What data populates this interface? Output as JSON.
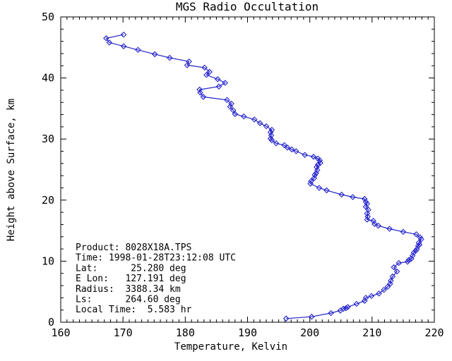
{
  "title": "MGS Radio Occultation",
  "chart_data": {
    "type": "line",
    "title": "MGS Radio Occultation",
    "xlabel": "Temperature, Kelvin",
    "ylabel": "Height above Surface, km",
    "xlim": [
      160,
      220
    ],
    "ylim": [
      0,
      50
    ],
    "x_major_ticks": [
      160,
      170,
      180,
      190,
      200,
      210,
      220
    ],
    "y_major_ticks": [
      0,
      10,
      20,
      30,
      40,
      50
    ],
    "x_minor_step": 1,
    "y_minor_step": 2,
    "grid": false,
    "legend": "none",
    "marker": "open-diamond",
    "line_color": "#2222CC",
    "frame_color": "#000000",
    "background_color": "#FFFFFF",
    "series": [
      {
        "name": "temperature_profile",
        "x_units": "Kelvin",
        "y_units": "km",
        "points": [
          [
            170.1,
            47.1
          ],
          [
            167.3,
            46.5
          ],
          [
            167.8,
            45.8
          ],
          [
            170.1,
            45.2
          ],
          [
            172.4,
            44.6
          ],
          [
            175.1,
            43.9
          ],
          [
            177.5,
            43.3
          ],
          [
            180.6,
            42.7
          ],
          [
            180.3,
            42.1
          ],
          [
            183.1,
            41.7
          ],
          [
            183.9,
            41.0
          ],
          [
            183.4,
            40.5
          ],
          [
            185.2,
            39.8
          ],
          [
            186.4,
            39.2
          ],
          [
            185.4,
            38.6
          ],
          [
            182.3,
            38.1
          ],
          [
            182.4,
            37.6
          ],
          [
            182.9,
            36.9
          ],
          [
            186.7,
            36.4
          ],
          [
            187.4,
            35.8
          ],
          [
            187.2,
            35.3
          ],
          [
            187.7,
            34.7
          ],
          [
            188.0,
            34.1
          ],
          [
            189.4,
            33.7
          ],
          [
            191.1,
            33.2
          ],
          [
            192.0,
            32.6
          ],
          [
            193.0,
            32.1
          ],
          [
            193.9,
            31.5
          ],
          [
            193.7,
            31.1
          ],
          [
            193.8,
            30.6
          ],
          [
            193.7,
            30.1
          ],
          [
            193.9,
            29.8
          ],
          [
            194.6,
            29.3
          ],
          [
            195.9,
            29.0
          ],
          [
            196.4,
            28.6
          ],
          [
            197.1,
            28.3
          ],
          [
            197.8,
            28.0
          ],
          [
            199.2,
            27.4
          ],
          [
            200.6,
            27.1
          ],
          [
            201.3,
            26.8
          ],
          [
            201.6,
            26.5
          ],
          [
            201.7,
            26.1
          ],
          [
            201.3,
            25.8
          ],
          [
            201.1,
            25.4
          ],
          [
            201.2,
            24.9
          ],
          [
            201.0,
            24.4
          ],
          [
            200.8,
            24.1
          ],
          [
            200.7,
            23.6
          ],
          [
            200.2,
            23.1
          ],
          [
            200.1,
            22.7
          ],
          [
            201.5,
            22.0
          ],
          [
            202.7,
            21.6
          ],
          [
            205.1,
            20.9
          ],
          [
            206.9,
            20.5
          ],
          [
            208.8,
            20.2
          ],
          [
            209.0,
            19.7
          ],
          [
            209.2,
            19.4
          ],
          [
            209.0,
            18.9
          ],
          [
            209.4,
            18.4
          ],
          [
            209.2,
            17.8
          ],
          [
            209.3,
            17.3
          ],
          [
            209.2,
            16.8
          ],
          [
            210.2,
            16.6
          ],
          [
            210.4,
            16.1
          ],
          [
            211.0,
            15.8
          ],
          [
            212.8,
            15.3
          ],
          [
            215.0,
            14.8
          ],
          [
            217.1,
            14.4
          ],
          [
            217.7,
            13.9
          ],
          [
            217.9,
            13.6
          ],
          [
            217.5,
            13.0
          ],
          [
            217.6,
            12.7
          ],
          [
            217.4,
            12.5
          ],
          [
            217.2,
            12.0
          ],
          [
            217.0,
            11.7
          ],
          [
            216.7,
            11.4
          ],
          [
            216.5,
            10.9
          ],
          [
            216.3,
            10.4
          ],
          [
            215.9,
            10.2
          ],
          [
            215.7,
            9.9
          ],
          [
            214.3,
            9.7
          ],
          [
            213.5,
            9.0
          ],
          [
            214.0,
            8.3
          ],
          [
            213.3,
            7.5
          ],
          [
            213.0,
            6.8
          ],
          [
            212.9,
            6.3
          ],
          [
            212.5,
            5.8
          ],
          [
            211.9,
            5.3
          ],
          [
            211.1,
            4.7
          ],
          [
            209.9,
            4.3
          ],
          [
            209.0,
            4.0
          ],
          [
            208.8,
            3.5
          ],
          [
            207.5,
            3.0
          ],
          [
            206.1,
            2.5
          ],
          [
            205.8,
            2.3
          ],
          [
            205.4,
            2.2
          ],
          [
            204.9,
            1.9
          ],
          [
            203.4,
            1.5
          ],
          [
            200.3,
            0.9
          ],
          [
            196.2,
            0.6
          ]
        ]
      }
    ],
    "annotation": {
      "lines": [
        "Product: 8028X18A.TPS",
        "Time: 1998-01-28T23:12:08 UTC",
        "Lat:      25.280 deg",
        "E Lon:   127.191 deg",
        "Radius:  3388.34 km",
        "Ls:      264.60 deg",
        "Local Time:  5.583 hr"
      ]
    }
  }
}
